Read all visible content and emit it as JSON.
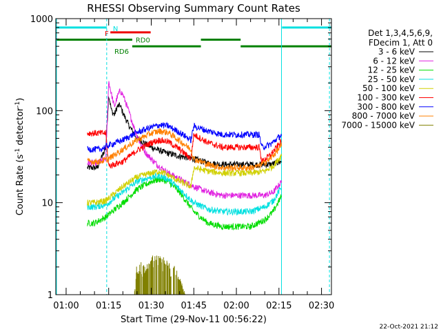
{
  "chart_data": {
    "type": "line",
    "title": "RHESSI Observing Summary Count Rates",
    "xlabel": "Start Time (29-Nov-11 00:56:22)",
    "ylabel_main": "Count Rate (s",
    "ylabel_sup1": "-1",
    "ylabel_mid": " detector",
    "ylabel_sup2": "-1",
    "ylabel_end": ")",
    "yscale": "log",
    "ylim": [
      1,
      1000
    ],
    "xlim_minutes": [
      56.37,
      153.5
    ],
    "x_ticks": [
      {
        "label": "01:00",
        "minute": 60
      },
      {
        "label": "01:15",
        "minute": 75
      },
      {
        "label": "01:30",
        "minute": 90
      },
      {
        "label": "01:45",
        "minute": 105
      },
      {
        "label": "02:00",
        "minute": 120
      },
      {
        "label": "02:15",
        "minute": 135
      },
      {
        "label": "02:30",
        "minute": 150
      }
    ],
    "y_ticks": [
      {
        "label": "1",
        "value": 1
      },
      {
        "label": "10",
        "value": 10
      },
      {
        "label": "100",
        "value": 100
      },
      {
        "label": "1000",
        "value": 1000
      }
    ],
    "legend": {
      "header1": "Det 1,3,4,5,6,9,",
      "header2": "FDecim 1, Att 0",
      "placement": "right"
    },
    "series": [
      {
        "name": "3 - 6 keV",
        "color": "#000000",
        "points": [
          [
            67.5,
            24
          ],
          [
            71,
            24
          ],
          [
            74,
            40
          ],
          [
            75,
            150
          ],
          [
            76,
            100
          ],
          [
            77,
            90
          ],
          [
            78,
            110
          ],
          [
            79,
            115
          ],
          [
            80,
            95
          ],
          [
            82,
            70
          ],
          [
            85,
            50
          ],
          [
            90,
            40
          ],
          [
            95,
            35
          ],
          [
            100,
            32
          ],
          [
            105,
            30
          ],
          [
            110,
            27
          ],
          [
            115,
            26
          ],
          [
            125,
            26
          ],
          [
            132,
            26
          ],
          [
            136,
            28
          ]
        ]
      },
      {
        "name": "6 - 12 keV",
        "color": "#e020e0",
        "points": [
          [
            67.5,
            27
          ],
          [
            71,
            27
          ],
          [
            74,
            30
          ],
          [
            75,
            210
          ],
          [
            76,
            150
          ],
          [
            77,
            110
          ],
          [
            78,
            140
          ],
          [
            79,
            165
          ],
          [
            80,
            150
          ],
          [
            82,
            100
          ],
          [
            84,
            65
          ],
          [
            86,
            45
          ],
          [
            88,
            35
          ],
          [
            90,
            30
          ],
          [
            92,
            26
          ],
          [
            95,
            22
          ],
          [
            100,
            18
          ],
          [
            105,
            15
          ],
          [
            110,
            13
          ],
          [
            115,
            12
          ],
          [
            120,
            12
          ],
          [
            125,
            12
          ],
          [
            130,
            12
          ],
          [
            133,
            13
          ],
          [
            136,
            17
          ]
        ]
      },
      {
        "name": "12 - 25 keV",
        "color": "#00dd00",
        "points": [
          [
            67.5,
            6
          ],
          [
            70,
            6
          ],
          [
            74,
            7
          ],
          [
            80,
            10
          ],
          [
            85,
            14
          ],
          [
            90,
            17
          ],
          [
            93,
            18
          ],
          [
            96,
            17
          ],
          [
            100,
            13
          ],
          [
            105,
            8
          ],
          [
            110,
            6
          ],
          [
            115,
            5.5
          ],
          [
            120,
            5.5
          ],
          [
            125,
            5.5
          ],
          [
            130,
            6.5
          ],
          [
            133,
            8
          ],
          [
            136,
            12
          ]
        ]
      },
      {
        "name": "25 - 50 keV",
        "color": "#00e0e0",
        "points": [
          [
            67.5,
            9
          ],
          [
            70,
            9
          ],
          [
            74,
            9.5
          ],
          [
            80,
            13
          ],
          [
            85,
            17
          ],
          [
            90,
            19
          ],
          [
            93,
            19.5
          ],
          [
            96,
            18
          ],
          [
            100,
            14
          ],
          [
            105,
            10
          ],
          [
            110,
            8.5
          ],
          [
            115,
            8
          ],
          [
            120,
            8
          ],
          [
            125,
            8
          ],
          [
            130,
            9
          ],
          [
            133,
            10.5
          ],
          [
            136,
            15
          ]
        ]
      },
      {
        "name": "50 - 100 keV",
        "color": "#d0d000",
        "points": [
          [
            67.5,
            10
          ],
          [
            70,
            10
          ],
          [
            74,
            10.5
          ],
          [
            80,
            15
          ],
          [
            85,
            19
          ],
          [
            90,
            21
          ],
          [
            93,
            22
          ],
          [
            96,
            20
          ],
          [
            100,
            17
          ],
          [
            104,
            15
          ],
          [
            105,
            24
          ],
          [
            110,
            22
          ],
          [
            115,
            21
          ],
          [
            120,
            21
          ],
          [
            125,
            21
          ],
          [
            130,
            22
          ],
          [
            133,
            25
          ],
          [
            136,
            33
          ]
        ]
      },
      {
        "name": "100 - 300 keV",
        "color": "#ff0000",
        "points": [
          [
            67.5,
            57
          ],
          [
            74,
            57
          ],
          [
            75,
            25
          ],
          [
            80,
            28
          ],
          [
            85,
            37
          ],
          [
            90,
            45
          ],
          [
            93,
            48
          ],
          [
            96,
            46
          ],
          [
            100,
            38
          ],
          [
            104,
            30
          ],
          [
            105,
            55
          ],
          [
            110,
            45
          ],
          [
            115,
            40
          ],
          [
            120,
            40
          ],
          [
            125,
            40
          ],
          [
            128,
            40
          ],
          [
            129,
            28
          ],
          [
            132,
            33
          ],
          [
            136,
            47
          ]
        ]
      },
      {
        "name": "300 - 800 keV",
        "color": "#0000ff",
        "points": [
          [
            67.5,
            38
          ],
          [
            72,
            38
          ],
          [
            75,
            42
          ],
          [
            80,
            48
          ],
          [
            85,
            58
          ],
          [
            90,
            66
          ],
          [
            93,
            70
          ],
          [
            96,
            68
          ],
          [
            100,
            58
          ],
          [
            104,
            48
          ],
          [
            105,
            68
          ],
          [
            110,
            60
          ],
          [
            115,
            55
          ],
          [
            120,
            55
          ],
          [
            125,
            55
          ],
          [
            128,
            55
          ],
          [
            129,
            40
          ],
          [
            132,
            43
          ],
          [
            136,
            55
          ]
        ]
      },
      {
        "name": "800 - 7000 keV",
        "color": "#ff8000",
        "points": [
          [
            67.5,
            28
          ],
          [
            72,
            28
          ],
          [
            75,
            30
          ],
          [
            80,
            38
          ],
          [
            85,
            48
          ],
          [
            90,
            57
          ],
          [
            93,
            60
          ],
          [
            96,
            58
          ],
          [
            100,
            47
          ],
          [
            104,
            38
          ],
          [
            105,
            30
          ],
          [
            110,
            26
          ],
          [
            115,
            24
          ],
          [
            120,
            24
          ],
          [
            125,
            24
          ],
          [
            128,
            25
          ],
          [
            132,
            30
          ],
          [
            136,
            42
          ]
        ]
      },
      {
        "name": "7000 - 15000 keV",
        "color": "#808000",
        "points": [
          [
            84,
            1
          ],
          [
            85,
            2
          ],
          [
            86,
            2.1
          ],
          [
            88,
            1.8
          ],
          [
            90,
            2.5
          ],
          [
            92,
            2.4
          ],
          [
            94,
            2.3
          ],
          [
            96,
            2
          ],
          [
            98,
            1.9
          ],
          [
            100,
            1.5
          ],
          [
            102,
            1
          ]
        ]
      }
    ],
    "flag_bars": [
      {
        "label": "N",
        "color": "#00e0e0",
        "segments": [
          [
            56.37,
            74.3
          ],
          [
            136.1,
            153.5
          ]
        ],
        "value": 800
      },
      {
        "label": "F",
        "color": "#ee0000",
        "segments": [
          [
            75.6,
            89.8
          ]
        ],
        "value": 710
      },
      {
        "label": "RD0",
        "color": "#008000",
        "segments": [
          [
            56.37,
            83.3
          ],
          [
            107.5,
            121.5
          ]
        ],
        "value": 590
      },
      {
        "label": "RD6",
        "color": "#008000",
        "segments": [
          [
            83.3,
            107.5
          ],
          [
            121.5,
            153.5
          ]
        ],
        "value": 500
      }
    ],
    "vlines": [
      {
        "minute": 56.6,
        "color": "#00e0e0",
        "style": "solid"
      },
      {
        "minute": 74.3,
        "color": "#00e0e0",
        "style": "dashed"
      },
      {
        "minute": 135.9,
        "color": "#00e0e0",
        "style": "solid"
      },
      {
        "minute": 152.8,
        "color": "#00e0e0",
        "style": "dashed"
      }
    ],
    "timestamp": "22-Oct-2021 21:12"
  }
}
